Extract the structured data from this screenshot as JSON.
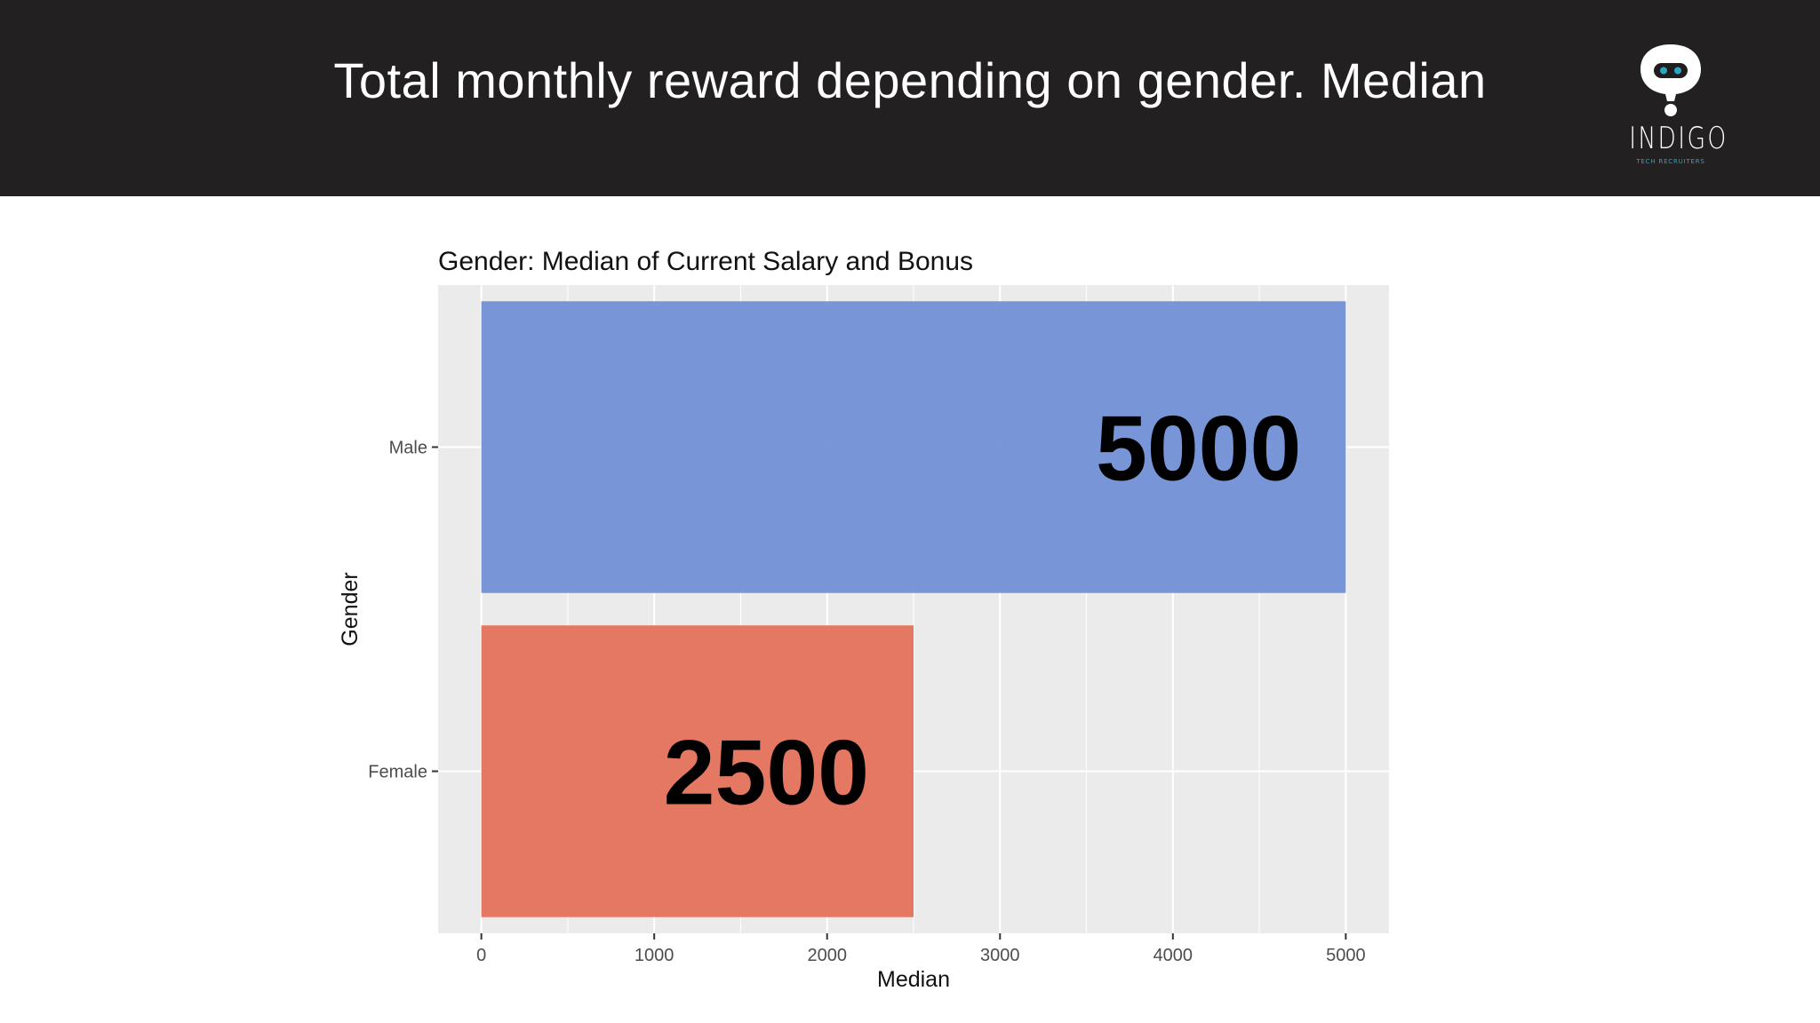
{
  "header": {
    "title": "Total monthly reward depending on gender. Median",
    "logo": {
      "brand": "INDIGO",
      "tagline": "TECH RECRUITERS"
    }
  },
  "chart_data": {
    "type": "bar",
    "orientation": "horizontal",
    "title": "Gender: Median of Current Salary and Bonus",
    "xlabel": "Median",
    "ylabel": "Gender",
    "categories": [
      "Female",
      "Male"
    ],
    "values": [
      2500,
      5000
    ],
    "data_labels": [
      "2500",
      "5000"
    ],
    "bar_colors": [
      "#e46f57",
      "#6e8ed5"
    ],
    "xlim": [
      -250,
      5250
    ],
    "x_ticks": [
      0,
      1000,
      2000,
      3000,
      4000,
      5000
    ],
    "grid": true,
    "panel_background": "#ebebeb"
  },
  "colors": {
    "header_bg": "#222021",
    "logo_accent": "#2aa6c4"
  }
}
